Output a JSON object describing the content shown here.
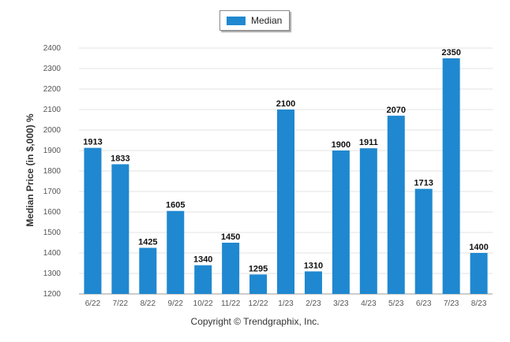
{
  "chart_data": {
    "type": "bar",
    "categories": [
      "6/22",
      "7/22",
      "8/22",
      "9/22",
      "10/22",
      "11/22",
      "12/22",
      "1/23",
      "2/23",
      "3/23",
      "4/23",
      "5/23",
      "6/23",
      "7/23",
      "8/23"
    ],
    "series": [
      {
        "name": "Median",
        "values": [
          1913,
          1833,
          1425,
          1605,
          1340,
          1450,
          1295,
          2100,
          1310,
          1900,
          1911,
          2070,
          1713,
          2350,
          1400
        ],
        "color": "#1f88d0"
      }
    ],
    "ylabel": "Median Price (in $,000) %",
    "xlabel": "",
    "ylim": [
      1200,
      2400
    ],
    "yticks": [
      1200,
      1300,
      1400,
      1500,
      1600,
      1700,
      1800,
      1900,
      2000,
      2100,
      2200,
      2300,
      2400
    ],
    "grid": true,
    "legend_position": "top-center"
  },
  "legend": {
    "label": "Median",
    "color": "#1f88d0"
  },
  "footer": {
    "copyright": "Copyright © Trendgraphix, Inc."
  },
  "colors": {
    "bar": "#1f88d0",
    "grid": "#e3e3e3",
    "axis": "#999999"
  }
}
